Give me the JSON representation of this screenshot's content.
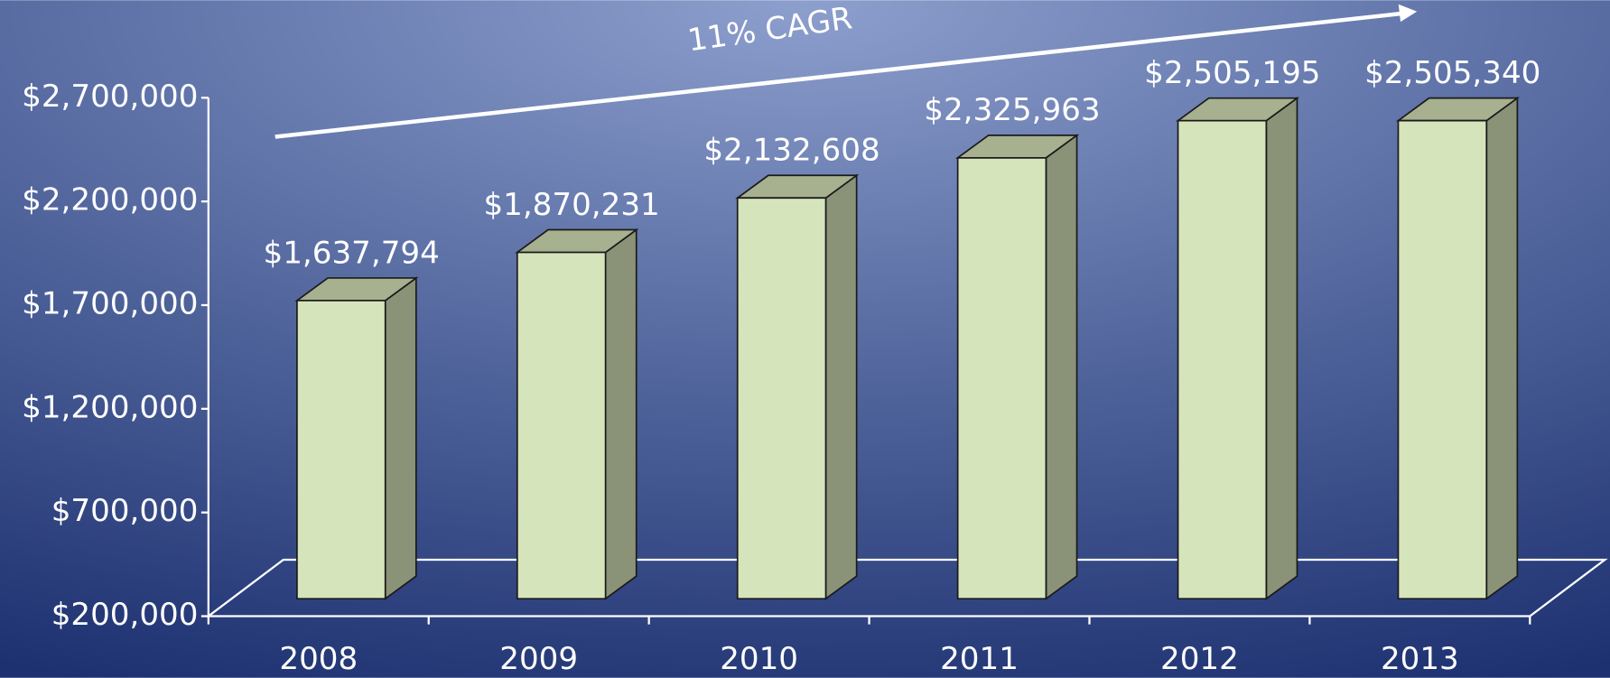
{
  "chart_data": {
    "type": "bar3d",
    "annotation": "11% CAGR",
    "categories": [
      "2008",
      "2009",
      "2010",
      "2011",
      "2012",
      "2013"
    ],
    "values": [
      1637794,
      1870231,
      2132608,
      2325963,
      2505195,
      2505340
    ],
    "value_labels": [
      "$1,637,794",
      "$1,870,231",
      "$2,132,608",
      "$2,325,963",
      "$2,505,195",
      "$2,505,340"
    ],
    "color": "#d6e4bc",
    "ylim": [
      200000,
      2700000
    ],
    "yticks": [
      {
        "value": 200000,
        "label": "$200,000"
      },
      {
        "value": 700000,
        "label": "$700,000"
      },
      {
        "value": 1200000,
        "label": "$1,200,000"
      },
      {
        "value": 1700000,
        "label": "$1,700,000"
      },
      {
        "value": 2200000,
        "label": "$2,200,000"
      },
      {
        "value": 2700000,
        "label": "$2,700,000"
      }
    ]
  }
}
